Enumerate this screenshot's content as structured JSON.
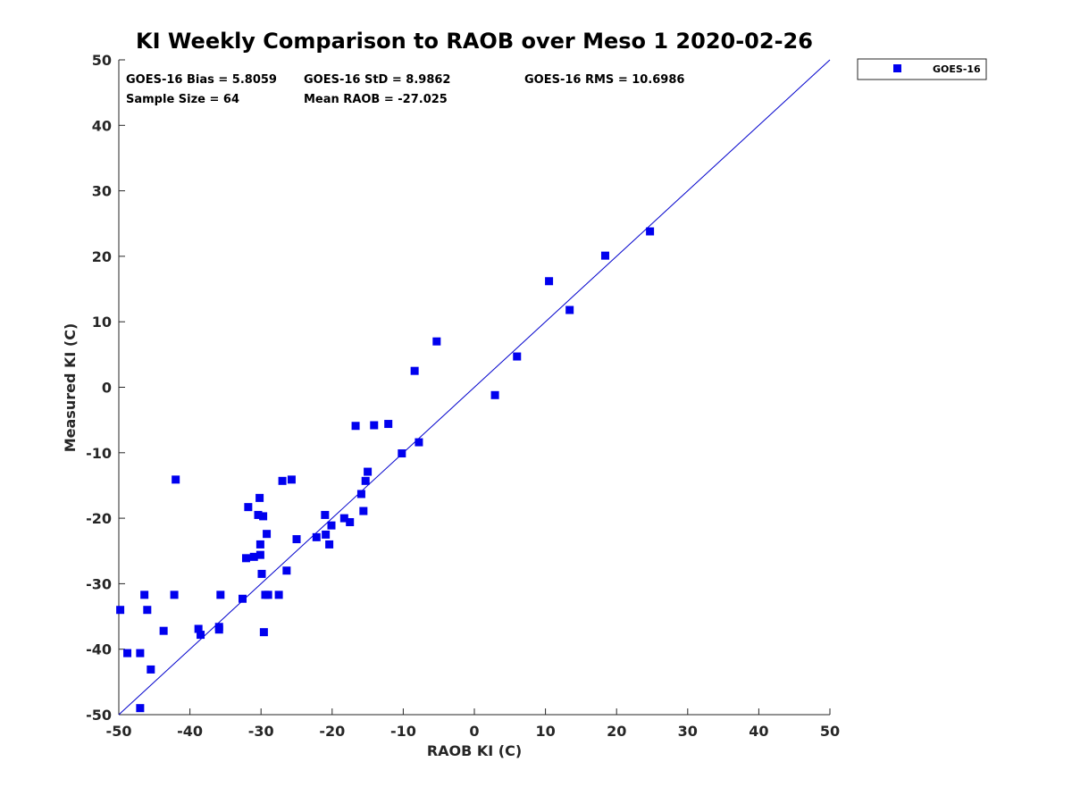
{
  "chart_data": {
    "type": "scatter",
    "title": "KI Weekly Comparison to RAOB over Meso 1 2020-02-26",
    "xlabel": "RAOB KI (C)",
    "ylabel": "Measured KI (C)",
    "xlim": [
      -50,
      50
    ],
    "ylim": [
      -50,
      50
    ],
    "xticks": [
      -50,
      -40,
      -30,
      -20,
      -10,
      0,
      10,
      20,
      30,
      40,
      50
    ],
    "yticks": [
      -50,
      -40,
      -30,
      -20,
      -10,
      0,
      10,
      20,
      30,
      40,
      50
    ],
    "grid": false,
    "legend": {
      "position": "outside-top-right",
      "entries": [
        "GOES-16"
      ]
    },
    "reference_line": {
      "x": [
        -50,
        50
      ],
      "y": [
        -50,
        50
      ],
      "color": "#0000cc"
    },
    "marker_color": "#0000ee",
    "annotations": {
      "bias": "GOES-16 Bias = 5.8059",
      "std": "GOES-16 StD = 8.9862",
      "rms": "GOES-16 RMS = 10.6986",
      "sample": "Sample Size = 64",
      "mean": "Mean RAOB = -27.025"
    },
    "series": [
      {
        "name": "GOES-16",
        "x": [
          -49.8,
          -48.8,
          -47,
          -47,
          -46.4,
          -46,
          -45.5,
          -43.7,
          -42.2,
          -42,
          -38.8,
          -38.5,
          -35.9,
          -35.9,
          -35.7,
          -32.6,
          -32.1,
          -31.8,
          -31,
          -30.4,
          -30.2,
          -30.1,
          -30.1,
          -29.9,
          -29.7,
          -29.6,
          -29.4,
          -29.2,
          -29,
          -27.5,
          -27,
          -26.4,
          -25.7,
          -25,
          -22.2,
          -21,
          -20.9,
          -20.4,
          -20.1,
          -18.3,
          -17.5,
          -16.7,
          -15.9,
          -15.6,
          -15.3,
          -15,
          -14.1,
          -12.1,
          -10.2,
          -8.4,
          -7.8,
          -5.3,
          2.9,
          6,
          10.5,
          13.4,
          18.4,
          24.7
        ],
        "y": [
          -34,
          -40.6,
          -40.6,
          -49,
          -31.7,
          -34,
          -43.1,
          -37.2,
          -31.7,
          -14.1,
          -36.9,
          -37.8,
          -36.6,
          -37,
          -31.7,
          -32.3,
          -26.1,
          -18.3,
          -25.9,
          -19.5,
          -16.9,
          -25.6,
          -24,
          -28.5,
          -19.7,
          -37.4,
          -31.7,
          -22.4,
          -31.7,
          -31.7,
          -14.3,
          -28,
          -14.1,
          -23.2,
          -22.9,
          -19.5,
          -22.5,
          -24,
          -21.1,
          -20,
          -20.6,
          -5.9,
          -16.3,
          -18.9,
          -14.3,
          -12.9,
          -5.8,
          -5.6,
          -10.1,
          2.5,
          -8.4,
          7,
          -1.2,
          4.7,
          16.2,
          11.8,
          20.1,
          23.8
        ]
      }
    ]
  }
}
